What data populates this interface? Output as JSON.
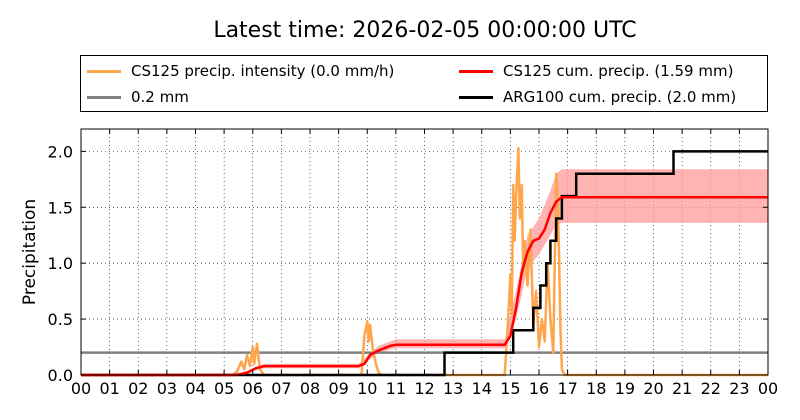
{
  "chart_data": {
    "type": "line",
    "title": "Latest time: 2026-02-05 00:00:00 UTC",
    "ylabel": "Precipitation",
    "xlabel": "",
    "xlim": [
      0,
      24
    ],
    "ylim": [
      0,
      2.2
    ],
    "grid": true,
    "legend_placement": "top",
    "x_ticks": [
      "00",
      "01",
      "02",
      "03",
      "04",
      "05",
      "06",
      "07",
      "08",
      "09",
      "10",
      "11",
      "12",
      "13",
      "14",
      "15",
      "16",
      "17",
      "18",
      "19",
      "20",
      "21",
      "22",
      "23",
      "00"
    ],
    "y_ticks": [
      "0.0",
      "0.5",
      "1.0",
      "1.5",
      "2.0"
    ],
    "series": [
      {
        "name": "CS125 precip. intensity (0.0 mm/h)",
        "color": "#ffa64d",
        "points": [
          [
            0,
            0
          ],
          [
            5.3,
            0
          ],
          [
            5.45,
            0.03
          ],
          [
            5.6,
            0.12
          ],
          [
            5.7,
            0.05
          ],
          [
            5.8,
            0.18
          ],
          [
            5.9,
            0.08
          ],
          [
            6.0,
            0.25
          ],
          [
            6.05,
            0.1
          ],
          [
            6.15,
            0.28
          ],
          [
            6.25,
            0.05
          ],
          [
            6.4,
            0
          ],
          [
            9.8,
            0
          ],
          [
            9.9,
            0.35
          ],
          [
            10.0,
            0.48
          ],
          [
            10.05,
            0.3
          ],
          [
            10.1,
            0.45
          ],
          [
            10.2,
            0.22
          ],
          [
            10.3,
            0.1
          ],
          [
            10.4,
            0.02
          ],
          [
            10.5,
            0
          ],
          [
            14.8,
            0
          ],
          [
            14.9,
            0.4
          ],
          [
            15.0,
            0.9
          ],
          [
            15.05,
            0.55
          ],
          [
            15.1,
            1.7
          ],
          [
            15.15,
            1.2
          ],
          [
            15.2,
            1.6
          ],
          [
            15.25,
            1.85
          ],
          [
            15.28,
            2.03
          ],
          [
            15.33,
            1.4
          ],
          [
            15.4,
            1.7
          ],
          [
            15.45,
            0.9
          ],
          [
            15.5,
            1.2
          ],
          [
            15.6,
            0.8
          ],
          [
            15.7,
            1.3
          ],
          [
            15.8,
            0.45
          ],
          [
            15.9,
            0.75
          ],
          [
            16.0,
            0.25
          ],
          [
            16.1,
            0.5
          ],
          [
            16.2,
            0.3
          ],
          [
            16.3,
            1.0
          ],
          [
            16.4,
            0.5
          ],
          [
            16.5,
            0.2
          ],
          [
            16.6,
            1.8
          ],
          [
            16.65,
            1.6
          ],
          [
            16.7,
            1.1
          ],
          [
            16.75,
            0.4
          ],
          [
            16.8,
            0.05
          ],
          [
            16.9,
            0
          ],
          [
            24,
            0
          ]
        ]
      },
      {
        "name": "CS125 cum. precip. (1.59 mm)",
        "color": "#ff0000",
        "band_color": "#ff9999",
        "points": [
          [
            0,
            0
          ],
          [
            5.4,
            0
          ],
          [
            5.8,
            0.02
          ],
          [
            6.1,
            0.06
          ],
          [
            6.4,
            0.08
          ],
          [
            9.7,
            0.08
          ],
          [
            9.9,
            0.1
          ],
          [
            10.1,
            0.18
          ],
          [
            10.4,
            0.22
          ],
          [
            10.8,
            0.26
          ],
          [
            11,
            0.27
          ],
          [
            14.8,
            0.27
          ],
          [
            15.0,
            0.35
          ],
          [
            15.2,
            0.6
          ],
          [
            15.4,
            0.92
          ],
          [
            15.6,
            1.1
          ],
          [
            15.8,
            1.2
          ],
          [
            16.0,
            1.22
          ],
          [
            16.2,
            1.3
          ],
          [
            16.4,
            1.45
          ],
          [
            16.6,
            1.55
          ],
          [
            16.8,
            1.59
          ],
          [
            24,
            1.59
          ]
        ],
        "band_lower": [
          [
            0,
            0
          ],
          [
            5.4,
            0
          ],
          [
            6.4,
            0.06
          ],
          [
            9.7,
            0.06
          ],
          [
            10.4,
            0.2
          ],
          [
            11,
            0.24
          ],
          [
            14.8,
            0.24
          ],
          [
            15.2,
            0.5
          ],
          [
            15.6,
            0.95
          ],
          [
            16.0,
            1.08
          ],
          [
            16.4,
            1.25
          ],
          [
            16.6,
            1.35
          ],
          [
            16.8,
            1.36
          ],
          [
            24,
            1.36
          ]
        ],
        "band_upper": [
          [
            0,
            0
          ],
          [
            5.4,
            0
          ],
          [
            6.4,
            0.1
          ],
          [
            9.7,
            0.1
          ],
          [
            10.4,
            0.26
          ],
          [
            11,
            0.32
          ],
          [
            14.8,
            0.32
          ],
          [
            15.2,
            0.75
          ],
          [
            15.6,
            1.25
          ],
          [
            16.0,
            1.4
          ],
          [
            16.4,
            1.65
          ],
          [
            16.6,
            1.8
          ],
          [
            16.8,
            1.84
          ],
          [
            24,
            1.84
          ]
        ]
      },
      {
        "name": "ARG100 cum. precip. (2.0 mm)",
        "color": "#000000",
        "step_points": [
          [
            0,
            0
          ],
          [
            12.7,
            0.2
          ],
          [
            15.1,
            0.4
          ],
          [
            15.8,
            0.6
          ],
          [
            16.05,
            0.8
          ],
          [
            16.25,
            1.0
          ],
          [
            16.4,
            1.2
          ],
          [
            16.6,
            1.4
          ],
          [
            16.8,
            1.6
          ],
          [
            17.3,
            1.8
          ],
          [
            20.7,
            2.0
          ]
        ]
      },
      {
        "name": "0.2 mm",
        "color": "#808080",
        "constant": 0.2
      }
    ]
  }
}
